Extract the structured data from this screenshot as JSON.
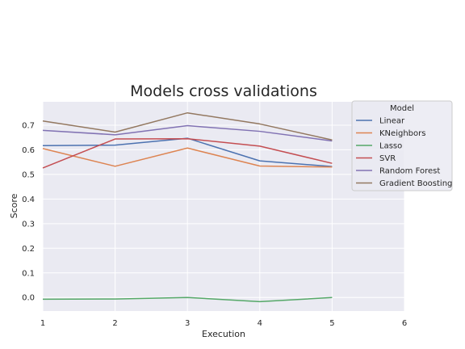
{
  "chart_data": {
    "type": "line",
    "title": "Models cross validations",
    "xlabel": "Execution",
    "ylabel": "Score",
    "x": [
      1,
      2,
      3,
      4,
      5
    ],
    "xlim": [
      1,
      6
    ],
    "ylim": [
      -0.055,
      0.795
    ],
    "xticks": [
      1,
      2,
      3,
      4,
      5,
      6
    ],
    "xtick_labels": [
      "1",
      "2",
      "3",
      "4",
      "5",
      "6"
    ],
    "yticks": [
      0.0,
      0.1,
      0.2,
      0.3,
      0.4,
      0.5,
      0.6,
      0.7
    ],
    "ytick_labels": [
      "0.0",
      "0.1",
      "0.2",
      "0.3",
      "0.4",
      "0.5",
      "0.6",
      "0.7"
    ],
    "grid": true,
    "legend": {
      "title": "Model",
      "placement": "upper-right-outside"
    },
    "series": [
      {
        "name": "Linear",
        "color": "#4c72b0",
        "values": [
          0.617,
          0.619,
          0.647,
          0.555,
          0.532
        ]
      },
      {
        "name": "KNeighbors",
        "color": "#dd8452",
        "values": [
          0.605,
          0.533,
          0.607,
          0.534,
          0.53
        ]
      },
      {
        "name": "Lasso",
        "color": "#55a868",
        "values": [
          -0.007,
          -0.006,
          0.0,
          -0.017,
          0.0
        ]
      },
      {
        "name": "SVR",
        "color": "#c44e52",
        "values": [
          0.526,
          0.644,
          0.645,
          0.615,
          0.545
        ]
      },
      {
        "name": "Random Forest",
        "color": "#8172b3",
        "values": [
          0.679,
          0.661,
          0.698,
          0.675,
          0.636
        ]
      },
      {
        "name": "Gradient Boosting",
        "color": "#937860",
        "values": [
          0.717,
          0.672,
          0.75,
          0.705,
          0.64
        ]
      }
    ]
  }
}
